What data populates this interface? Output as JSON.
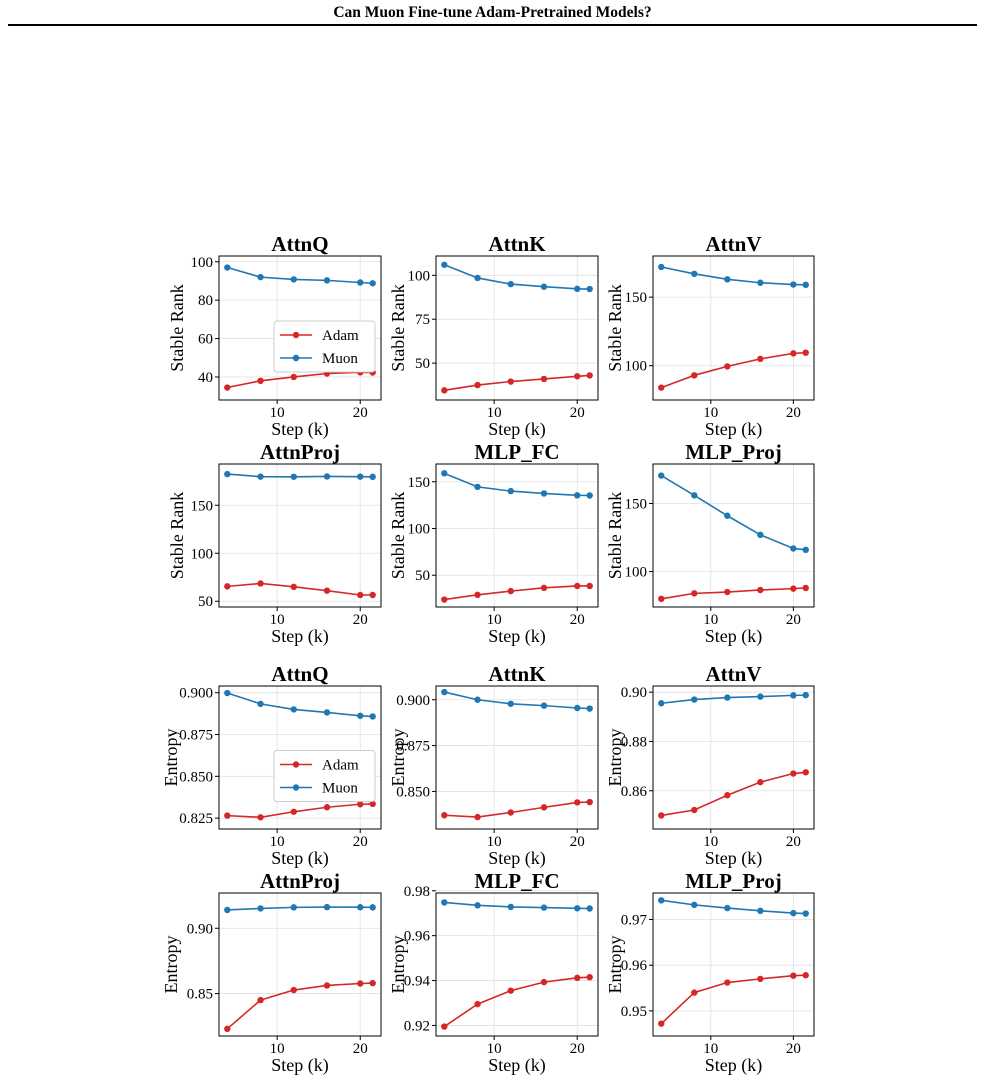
{
  "header": {
    "title": "Can Muon Fine-tune Adam-Pretrained Models?"
  },
  "colors": {
    "adam": "#d62728",
    "muon": "#1f77b4",
    "grid": "#e0e0e0",
    "axis": "#000000"
  },
  "chart_data": [
    {
      "type": "line",
      "title": "AttnQ",
      "xlabel": "Step (k)",
      "ylabel": "Stable Rank",
      "xlim": [
        3,
        22.5
      ],
      "ylim": [
        28,
        103
      ],
      "xticks": [
        10,
        20
      ],
      "yticks": [
        40,
        60,
        80,
        100
      ],
      "ytick_labels": [
        "40",
        "60",
        "80",
        "100"
      ],
      "legend": "center-right",
      "x": [
        4,
        8,
        12,
        16,
        20,
        21.5
      ],
      "series": [
        {
          "name": "Adam",
          "values": [
            34.5,
            38,
            40,
            41.8,
            42.4,
            42.3
          ]
        },
        {
          "name": "Muon",
          "values": [
            97,
            92,
            90.8,
            90.3,
            89.2,
            88.8
          ]
        }
      ]
    },
    {
      "type": "line",
      "title": "AttnK",
      "xlabel": "Step (k)",
      "ylabel": "Stable Rank",
      "xlim": [
        3,
        22.5
      ],
      "ylim": [
        29,
        111
      ],
      "xticks": [
        10,
        20
      ],
      "yticks": [
        50,
        75,
        100
      ],
      "ytick_labels": [
        "50",
        "75",
        "100"
      ],
      "legend": "none",
      "x": [
        4,
        8,
        12,
        16,
        20,
        21.5
      ],
      "series": [
        {
          "name": "Adam",
          "values": [
            34.5,
            37.5,
            39.5,
            41,
            42.5,
            43
          ]
        },
        {
          "name": "Muon",
          "values": [
            106,
            98.5,
            95,
            93.5,
            92.3,
            92.2
          ]
        }
      ]
    },
    {
      "type": "line",
      "title": "AttnV",
      "xlabel": "Step (k)",
      "ylabel": "Stable Rank",
      "xlim": [
        3,
        22.5
      ],
      "ylim": [
        75,
        180
      ],
      "xticks": [
        10,
        20
      ],
      "yticks": [
        100,
        150
      ],
      "ytick_labels": [
        "100",
        "150"
      ],
      "legend": "none",
      "x": [
        4,
        8,
        12,
        16,
        20,
        21.5
      ],
      "series": [
        {
          "name": "Adam",
          "values": [
            84,
            93,
            99.5,
            105,
            109,
            109.5
          ]
        },
        {
          "name": "Muon",
          "values": [
            172,
            167,
            163,
            160.5,
            159.2,
            159
          ]
        }
      ]
    },
    {
      "type": "line",
      "title": "AttnProj",
      "xlabel": "Step (k)",
      "ylabel": "Stable Rank",
      "xlim": [
        3,
        22.5
      ],
      "ylim": [
        44,
        193
      ],
      "xticks": [
        10,
        20
      ],
      "yticks": [
        50,
        100,
        150
      ],
      "ytick_labels": [
        "50",
        "100",
        "150"
      ],
      "legend": "none",
      "x": [
        4,
        8,
        12,
        16,
        20,
        21.5
      ],
      "series": [
        {
          "name": "Adam",
          "values": [
            65.5,
            68.5,
            65,
            61,
            56.5,
            56.5
          ]
        },
        {
          "name": "Muon",
          "values": [
            182.5,
            179.8,
            179.7,
            180,
            179.8,
            179.6
          ]
        }
      ]
    },
    {
      "type": "line",
      "title": "MLP_FC",
      "xlabel": "Step (k)",
      "ylabel": "Stable Rank",
      "xlim": [
        3,
        22.5
      ],
      "ylim": [
        16,
        169
      ],
      "xticks": [
        10,
        20
      ],
      "yticks": [
        50,
        100,
        150
      ],
      "ytick_labels": [
        "50",
        "100",
        "150"
      ],
      "legend": "none",
      "x": [
        4,
        8,
        12,
        16,
        20,
        21.5
      ],
      "series": [
        {
          "name": "Adam",
          "values": [
            24,
            29,
            33,
            36.5,
            38.5,
            38.5
          ]
        },
        {
          "name": "Muon",
          "values": [
            159,
            144.5,
            140,
            137.5,
            135.5,
            135.3
          ]
        }
      ]
    },
    {
      "type": "line",
      "title": "MLP_Proj",
      "xlabel": "Step (k)",
      "ylabel": "Stable Rank",
      "xlim": [
        3,
        22.5
      ],
      "ylim": [
        74,
        179
      ],
      "xticks": [
        10,
        20
      ],
      "yticks": [
        100,
        150
      ],
      "ytick_labels": [
        "100",
        "150"
      ],
      "legend": "none",
      "x": [
        4,
        8,
        12,
        16,
        20,
        21.5
      ],
      "series": [
        {
          "name": "Adam",
          "values": [
            80,
            84,
            85,
            86.5,
            87.5,
            88
          ]
        },
        {
          "name": "Muon",
          "values": [
            170.5,
            156,
            141,
            127,
            117,
            116
          ]
        }
      ]
    },
    {
      "type": "line",
      "title": "AttnQ",
      "xlabel": "Step (k)",
      "ylabel": "Entropy",
      "xlim": [
        3,
        22.5
      ],
      "ylim": [
        0.8185,
        0.904
      ],
      "xticks": [
        10,
        20
      ],
      "yticks": [
        0.825,
        0.85,
        0.875,
        0.9
      ],
      "ytick_labels": [
        "0.825",
        "0.850",
        "0.875",
        "0.900"
      ],
      "legend": "center-right",
      "x": [
        4,
        8,
        12,
        16,
        20,
        21.5
      ],
      "series": [
        {
          "name": "Adam",
          "values": [
            0.8265,
            0.8255,
            0.8288,
            0.8315,
            0.8333,
            0.8335
          ]
        },
        {
          "name": "Muon",
          "values": [
            0.8998,
            0.8933,
            0.89,
            0.8882,
            0.8862,
            0.8858
          ]
        }
      ]
    },
    {
      "type": "line",
      "title": "AttnK",
      "xlabel": "Step (k)",
      "ylabel": "Entropy",
      "xlim": [
        3,
        22.5
      ],
      "ylim": [
        0.8295,
        0.9075
      ],
      "xticks": [
        10,
        20
      ],
      "yticks": [
        0.85,
        0.875,
        0.9
      ],
      "ytick_labels": [
        "0.850",
        "0.875",
        "0.900"
      ],
      "legend": "none",
      "x": [
        4,
        8,
        12,
        16,
        20,
        21.5
      ],
      "series": [
        {
          "name": "Adam",
          "values": [
            0.837,
            0.836,
            0.8385,
            0.8413,
            0.844,
            0.8442
          ]
        },
        {
          "name": "Muon",
          "values": [
            0.9042,
            0.9,
            0.8978,
            0.8968,
            0.8955,
            0.8952
          ]
        }
      ]
    },
    {
      "type": "line",
      "title": "AttnV",
      "xlabel": "Step (k)",
      "ylabel": "Entropy",
      "xlim": [
        3,
        22.5
      ],
      "ylim": [
        0.8445,
        0.9025
      ],
      "xticks": [
        10,
        20
      ],
      "yticks": [
        0.86,
        0.88,
        0.9
      ],
      "ytick_labels": [
        "0.86",
        "0.88",
        "0.90"
      ],
      "legend": "none",
      "x": [
        4,
        8,
        12,
        16,
        20,
        21.5
      ],
      "series": [
        {
          "name": "Adam",
          "values": [
            0.85,
            0.8522,
            0.8582,
            0.8635,
            0.867,
            0.8675
          ]
        },
        {
          "name": "Muon",
          "values": [
            0.8955,
            0.897,
            0.8978,
            0.8982,
            0.8987,
            0.8988
          ]
        }
      ]
    },
    {
      "type": "line",
      "title": "AttnProj",
      "xlabel": "Step (k)",
      "ylabel": "Entropy",
      "xlim": [
        3,
        22.5
      ],
      "ylim": [
        0.8175,
        0.927
      ],
      "xticks": [
        10,
        20
      ],
      "yticks": [
        0.85,
        0.9
      ],
      "ytick_labels": [
        "0.85",
        "0.90"
      ],
      "legend": "none",
      "x": [
        4,
        8,
        12,
        16,
        20,
        21.5
      ],
      "series": [
        {
          "name": "Adam",
          "values": [
            0.823,
            0.845,
            0.8527,
            0.8562,
            0.8577,
            0.858
          ]
        },
        {
          "name": "Muon",
          "values": [
            0.914,
            0.9152,
            0.916,
            0.9162,
            0.9161,
            0.916
          ]
        }
      ]
    },
    {
      "type": "line",
      "title": "MLP_FC",
      "xlabel": "Step (k)",
      "ylabel": "Entropy",
      "xlim": [
        3,
        22.5
      ],
      "ylim": [
        0.9153,
        0.979
      ],
      "xticks": [
        10,
        20
      ],
      "yticks": [
        0.92,
        0.94,
        0.96,
        0.98
      ],
      "ytick_labels": [
        "0.92",
        "0.94",
        "0.96",
        "0.98"
      ],
      "legend": "none",
      "x": [
        4,
        8,
        12,
        16,
        20,
        21.5
      ],
      "series": [
        {
          "name": "Adam",
          "values": [
            0.9195,
            0.9295,
            0.9355,
            0.9393,
            0.9412,
            0.9415
          ]
        },
        {
          "name": "Muon",
          "values": [
            0.9748,
            0.9735,
            0.9728,
            0.9725,
            0.9722,
            0.9721
          ]
        }
      ]
    },
    {
      "type": "line",
      "title": "MLP_Proj",
      "xlabel": "Step (k)",
      "ylabel": "Entropy",
      "xlim": [
        3,
        22.5
      ],
      "ylim": [
        0.9445,
        0.9758
      ],
      "xticks": [
        10,
        20
      ],
      "yticks": [
        0.95,
        0.96,
        0.97
      ],
      "ytick_labels": [
        "0.95",
        "0.96",
        "0.97"
      ],
      "legend": "none",
      "x": [
        4,
        8,
        12,
        16,
        20,
        21.5
      ],
      "series": [
        {
          "name": "Adam",
          "values": [
            0.9472,
            0.954,
            0.9562,
            0.957,
            0.9577,
            0.9578
          ]
        },
        {
          "name": "Muon",
          "values": [
            0.9742,
            0.9732,
            0.9725,
            0.9719,
            0.9714,
            0.9713
          ]
        }
      ]
    }
  ]
}
